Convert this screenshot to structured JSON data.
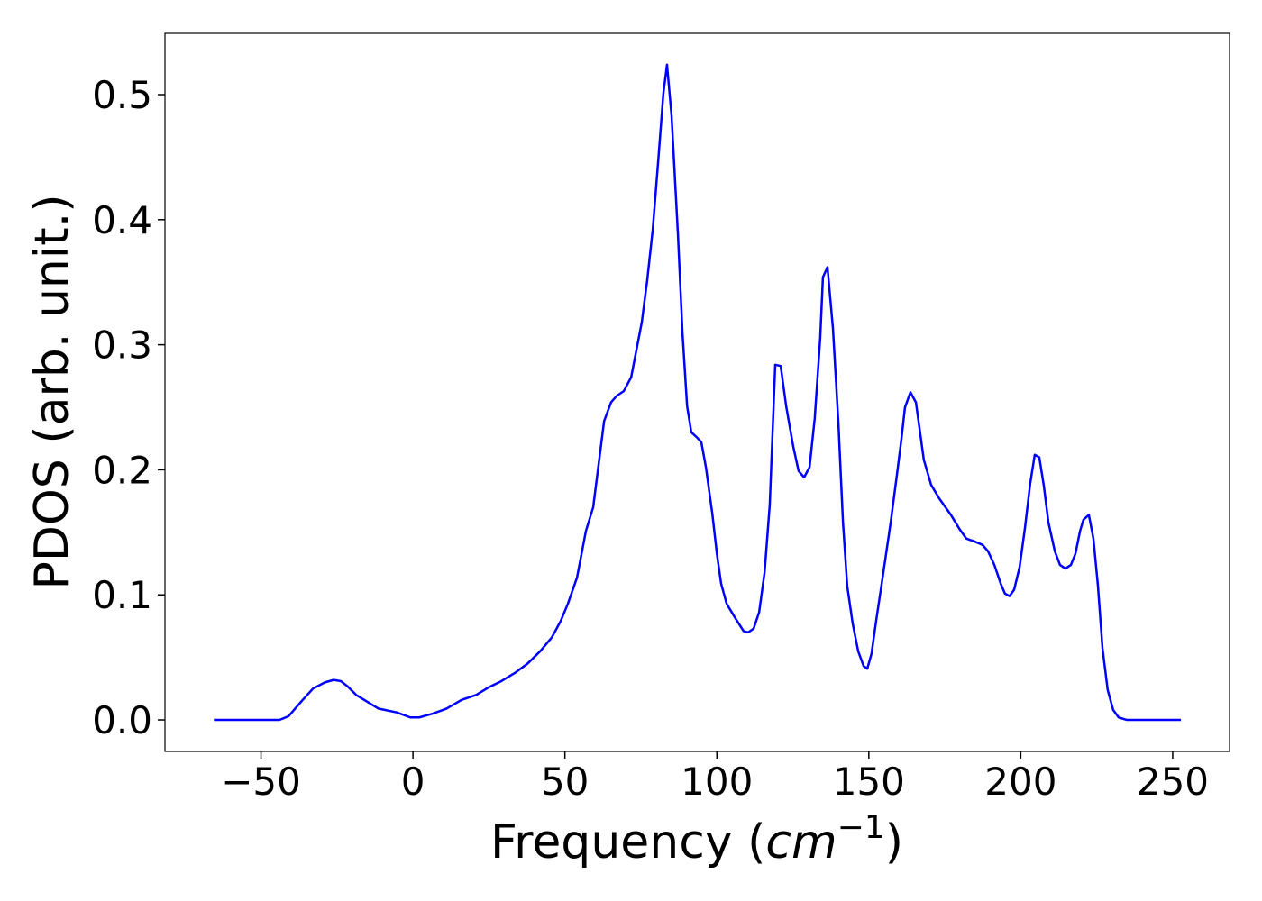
{
  "chart_data": {
    "type": "line",
    "xlabel": [
      "Frequency (",
      "cm",
      "−1",
      ")"
    ],
    "ylabel": "PDOS (arb. unit.)",
    "xlim": [
      -81.6,
      268.7
    ],
    "ylim": [
      -0.0252,
      0.549
    ],
    "xticks": [
      {
        "value": -50,
        "label": "−50"
      },
      0,
      50,
      100,
      150,
      200,
      250
    ],
    "yticks": [
      {
        "value": 0,
        "label": "0.0"
      },
      0.1,
      0.2,
      0.3,
      0.4,
      0.5
    ],
    "grid": false,
    "series": [
      {
        "color": "#0000ff",
        "x": [
          -65.5,
          -43.9,
          -40.9,
          -37,
          -32.9,
          -29,
          -26.1,
          -23.7,
          -21.6,
          -18.7,
          -11.3,
          -5.3,
          -0.9,
          2.1,
          6.5,
          11,
          16,
          20.8,
          24.9,
          29.1,
          33.8,
          37.7,
          41.9,
          45.7,
          48.6,
          51,
          54,
          56.9,
          59.3,
          62.9,
          65.2,
          67,
          69.4,
          71.8,
          75.3,
          77.1,
          78.9,
          80.8,
          82.4,
          83.6,
          85.1,
          87.2,
          88.7,
          90.2,
          91.6,
          93.4,
          94.9,
          96.4,
          98.5,
          100,
          101.4,
          103.2,
          105.9,
          108.8,
          110.3,
          112.1,
          113.9,
          115.7,
          117.4,
          119.2,
          121,
          122.8,
          125.1,
          126.9,
          128.7,
          130.5,
          132.2,
          134,
          134.9,
          136.4,
          138.2,
          140,
          141.5,
          142.9,
          144.7,
          146.5,
          148.3,
          149.5,
          150.9,
          152.4,
          154.8,
          157.2,
          159.3,
          160.7,
          161.9,
          163.7,
          165.5,
          168.1,
          170.5,
          173.2,
          177,
          180,
          182.1,
          184.5,
          187.4,
          189.2,
          191.3,
          193.4,
          194.8,
          196.3,
          197.8,
          199.6,
          201.4,
          203.1,
          204.6,
          206.1,
          207.6,
          209.1,
          211.2,
          212.9,
          214.7,
          216.5,
          218,
          219.5,
          220.6,
          222.4,
          223.9,
          225.4,
          226.9,
          228.6,
          230.4,
          232.2,
          234.9,
          252.7
        ],
        "values": [
          0,
          0,
          0.003,
          0.014,
          0.025,
          0.03,
          0.032,
          0.031,
          0.027,
          0.02,
          0.009,
          0.006,
          0.002,
          0.002,
          0.005,
          0.009,
          0.016,
          0.02,
          0.026,
          0.031,
          0.038,
          0.045,
          0.055,
          0.066,
          0.079,
          0.093,
          0.114,
          0.151,
          0.17,
          0.239,
          0.254,
          0.259,
          0.263,
          0.274,
          0.318,
          0.352,
          0.392,
          0.45,
          0.501,
          0.524,
          0.483,
          0.388,
          0.309,
          0.251,
          0.23,
          0.226,
          0.222,
          0.202,
          0.165,
          0.133,
          0.109,
          0.093,
          0.082,
          0.071,
          0.07,
          0.073,
          0.086,
          0.118,
          0.172,
          0.284,
          0.283,
          0.251,
          0.219,
          0.199,
          0.194,
          0.202,
          0.241,
          0.305,
          0.354,
          0.362,
          0.313,
          0.237,
          0.158,
          0.107,
          0.077,
          0.055,
          0.043,
          0.041,
          0.053,
          0.079,
          0.118,
          0.158,
          0.197,
          0.224,
          0.25,
          0.262,
          0.254,
          0.208,
          0.188,
          0.177,
          0.164,
          0.152,
          0.145,
          0.143,
          0.14,
          0.135,
          0.124,
          0.109,
          0.101,
          0.099,
          0.104,
          0.122,
          0.154,
          0.189,
          0.212,
          0.21,
          0.187,
          0.158,
          0.135,
          0.124,
          0.121,
          0.124,
          0.133,
          0.151,
          0.16,
          0.164,
          0.145,
          0.107,
          0.057,
          0.024,
          0.008,
          0.002,
          0,
          0
        ]
      }
    ]
  }
}
